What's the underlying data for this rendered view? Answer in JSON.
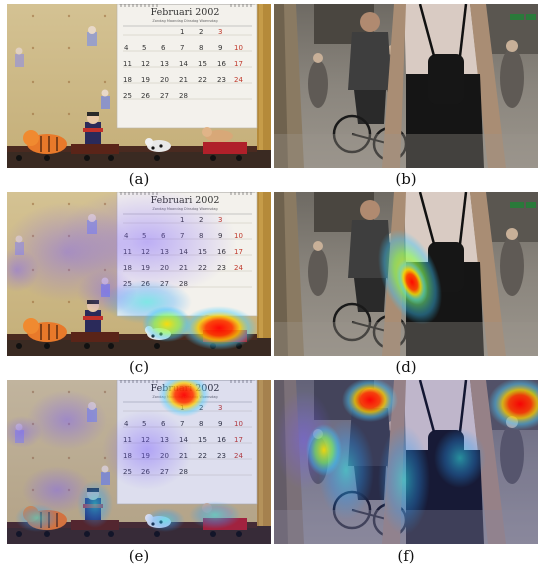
{
  "figure": {
    "captions": [
      "(a)",
      "(b)",
      "(c)",
      "(d)",
      "(e)",
      "(f)"
    ]
  },
  "calendar": {
    "title": "Februari 2002",
    "subtitle": "Zondag  Maandag  Dinsdag  Woensdag",
    "rows": [
      [
        "",
        "",
        "",
        "",
        "1",
        "2",
        "3"
      ],
      [
        "4",
        "5",
        "6",
        "7",
        "8",
        "9",
        "10"
      ],
      [
        "11",
        "12",
        "13",
        "14",
        "15",
        "16",
        "17"
      ],
      [
        "18",
        "19",
        "20",
        "21",
        "22",
        "23",
        "24"
      ],
      [
        "25",
        "26",
        "27",
        "28",
        "",
        "",
        ""
      ]
    ],
    "colors": {
      "weekday": "#333333",
      "weekend": "#c0392b",
      "wall": "#cdb98b",
      "paper": "#f3f1ec"
    }
  },
  "street": {
    "colors": {
      "ground": "#8f8b86",
      "crowd": "#5f5a55",
      "shirt": "#d9cbc3",
      "backpack": "#161616"
    }
  },
  "heatmaps": {
    "colors": {
      "core": "#ff0000",
      "mid": "#ffd000",
      "outer": "#4dd0ff",
      "faint": "#7a5cff"
    }
  }
}
